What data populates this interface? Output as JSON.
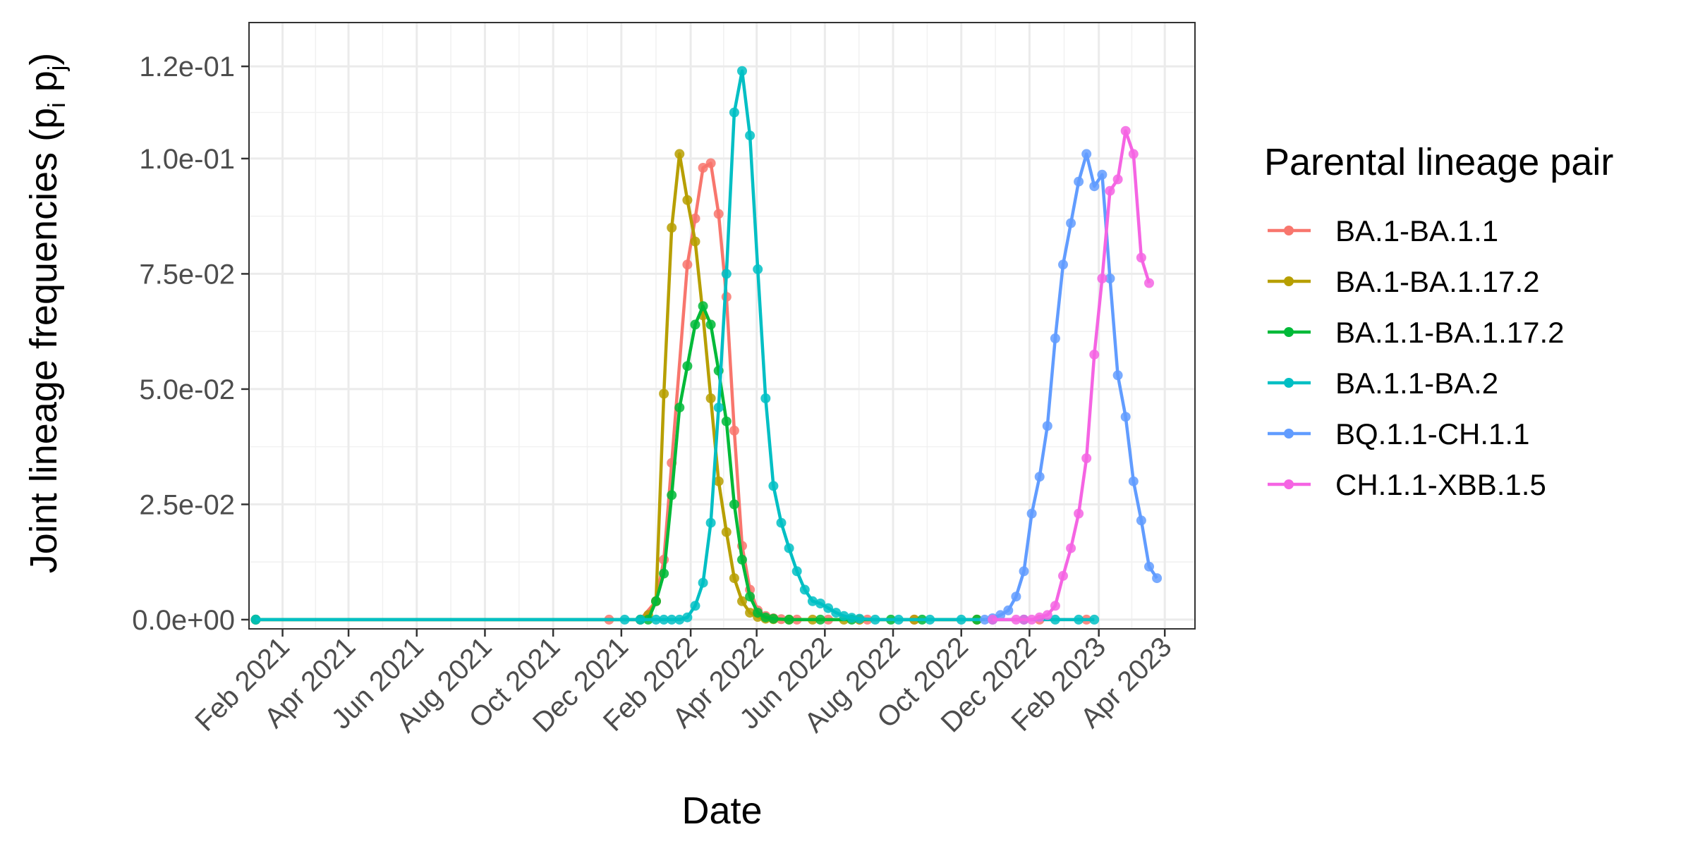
{
  "chart_data": {
    "type": "line",
    "xlabel": "Date",
    "ylabel_main": "Joint lineage frequencies (p",
    "ylabel_sub_i": "i",
    "ylabel_sep": " p",
    "ylabel_sub_j": "j",
    "ylabel_close": ")",
    "x_ticks": [
      "2021-02-01",
      "2021-04-01",
      "2021-06-01",
      "2021-08-01",
      "2021-10-01",
      "2021-12-01",
      "2022-02-01",
      "2022-04-01",
      "2022-06-01",
      "2022-08-01",
      "2022-10-01",
      "2022-12-01",
      "2023-02-01",
      "2023-04-01"
    ],
    "x_tick_labels": [
      "Feb 2021",
      "Apr 2021",
      "Jun 2021",
      "Aug 2021",
      "Oct 2021",
      "Dec 2021",
      "Feb 2022",
      "Apr 2022",
      "Jun 2022",
      "Aug 2022",
      "Oct 2022",
      "Dec 2022",
      "Feb 2023",
      "Apr 2023"
    ],
    "y_ticks": [
      0,
      0.025,
      0.05,
      0.075,
      0.1,
      0.12
    ],
    "y_tick_labels": [
      "0.0e+00",
      "2.5e-02",
      "5.0e-02",
      "7.5e-02",
      "1.0e-01",
      "1.2e-01"
    ],
    "xlim": [
      "2021-01-02",
      "2023-04-28"
    ],
    "ylim": [
      -0.002,
      0.1295
    ],
    "grid": true,
    "legend_position": "right",
    "legend_title": "Parental lineage pair",
    "series": [
      {
        "name": "BA.1-BA.1.1",
        "color": "#F8766D",
        "points": [
          [
            "2021-01-08",
            0
          ],
          [
            "2021-11-20",
            0
          ],
          [
            "2021-12-18",
            0
          ],
          [
            "2022-01-01",
            0.004
          ],
          [
            "2022-01-08",
            0.013
          ],
          [
            "2022-01-15",
            0.034
          ],
          [
            "2022-01-29",
            0.077
          ],
          [
            "2022-02-05",
            0.087
          ],
          [
            "2022-02-12",
            0.098
          ],
          [
            "2022-02-19",
            0.099
          ],
          [
            "2022-02-26",
            0.088
          ],
          [
            "2022-03-05",
            0.07
          ],
          [
            "2022-03-12",
            0.041
          ],
          [
            "2022-03-19",
            0.016
          ],
          [
            "2022-03-26",
            0.0065
          ],
          [
            "2022-04-02",
            0.002
          ],
          [
            "2022-04-09",
            0.0008
          ],
          [
            "2022-04-16",
            0.0003
          ],
          [
            "2022-04-23",
            0.0001
          ],
          [
            "2022-05-07",
            0
          ],
          [
            "2022-06-04",
            0
          ],
          [
            "2022-07-02",
            0
          ],
          [
            "2022-07-09",
            0
          ],
          [
            "2022-08-20",
            0
          ],
          [
            "2022-10-15",
            0
          ],
          [
            "2022-12-10",
            0
          ],
          [
            "2023-01-21",
            0
          ]
        ]
      },
      {
        "name": "BA.1-BA.1.17.2",
        "color": "#B79F00",
        "points": [
          [
            "2021-01-08",
            0
          ],
          [
            "2021-12-18",
            0
          ],
          [
            "2021-12-25",
            0.001
          ],
          [
            "2022-01-01",
            0.004
          ],
          [
            "2022-01-08",
            0.049
          ],
          [
            "2022-01-15",
            0.085
          ],
          [
            "2022-01-22",
            0.101
          ],
          [
            "2022-01-29",
            0.091
          ],
          [
            "2022-02-05",
            0.082
          ],
          [
            "2022-02-12",
            0.066
          ],
          [
            "2022-02-19",
            0.048
          ],
          [
            "2022-02-26",
            0.03
          ],
          [
            "2022-03-05",
            0.019
          ],
          [
            "2022-03-12",
            0.009
          ],
          [
            "2022-03-19",
            0.004
          ],
          [
            "2022-03-26",
            0.0015
          ],
          [
            "2022-04-02",
            0.0006
          ],
          [
            "2022-04-09",
            0.0002
          ],
          [
            "2022-04-16",
            0.0001
          ],
          [
            "2022-04-30",
            0
          ],
          [
            "2022-05-21",
            0
          ],
          [
            "2022-06-18",
            0
          ],
          [
            "2022-07-02",
            0
          ],
          [
            "2022-08-20",
            0
          ],
          [
            "2022-10-15",
            0
          ]
        ]
      },
      {
        "name": "BA.1.1-BA.1.17.2",
        "color": "#00BA38",
        "points": [
          [
            "2021-01-08",
            0
          ],
          [
            "2021-12-18",
            0
          ],
          [
            "2021-12-25",
            0
          ],
          [
            "2022-01-01",
            0.004
          ],
          [
            "2022-01-08",
            0.01
          ],
          [
            "2022-01-15",
            0.027
          ],
          [
            "2022-01-22",
            0.046
          ],
          [
            "2022-01-29",
            0.055
          ],
          [
            "2022-02-05",
            0.064
          ],
          [
            "2022-02-12",
            0.068
          ],
          [
            "2022-02-19",
            0.064
          ],
          [
            "2022-02-26",
            0.054
          ],
          [
            "2022-03-05",
            0.043
          ],
          [
            "2022-03-12",
            0.025
          ],
          [
            "2022-03-19",
            0.013
          ],
          [
            "2022-03-26",
            0.005
          ],
          [
            "2022-04-02",
            0.0015
          ],
          [
            "2022-04-09",
            0.0005
          ],
          [
            "2022-04-16",
            0.0002
          ],
          [
            "2022-04-30",
            0
          ],
          [
            "2022-05-28",
            0
          ],
          [
            "2022-06-25",
            0
          ],
          [
            "2022-07-30",
            0
          ],
          [
            "2022-08-27",
            0
          ],
          [
            "2022-10-15",
            0
          ]
        ]
      },
      {
        "name": "BA.1.1-BA.2",
        "color": "#00BFC4",
        "points": [
          [
            "2021-01-08",
            0
          ],
          [
            "2021-12-04",
            0
          ],
          [
            "2021-12-18",
            0
          ],
          [
            "2022-01-01",
            0
          ],
          [
            "2022-01-08",
            0
          ],
          [
            "2022-01-15",
            0
          ],
          [
            "2022-01-22",
            0
          ],
          [
            "2022-01-29",
            0.0005
          ],
          [
            "2022-02-05",
            0.003
          ],
          [
            "2022-02-12",
            0.008
          ],
          [
            "2022-02-19",
            0.021
          ],
          [
            "2022-02-26",
            0.046
          ],
          [
            "2022-03-05",
            0.075
          ],
          [
            "2022-03-12",
            0.11
          ],
          [
            "2022-03-19",
            0.119
          ],
          [
            "2022-03-26",
            0.105
          ],
          [
            "2022-04-02",
            0.076
          ],
          [
            "2022-04-09",
            0.048
          ],
          [
            "2022-04-16",
            0.029
          ],
          [
            "2022-04-23",
            0.021
          ],
          [
            "2022-04-30",
            0.0155
          ],
          [
            "2022-05-07",
            0.0105
          ],
          [
            "2022-05-14",
            0.0065
          ],
          [
            "2022-05-21",
            0.004
          ],
          [
            "2022-05-28",
            0.0035
          ],
          [
            "2022-06-04",
            0.0025
          ],
          [
            "2022-06-11",
            0.0015
          ],
          [
            "2022-06-18",
            0.0008
          ],
          [
            "2022-06-25",
            0.0004
          ],
          [
            "2022-07-02",
            0.0002
          ],
          [
            "2022-07-16",
            0
          ],
          [
            "2022-08-06",
            0
          ],
          [
            "2022-09-03",
            0
          ],
          [
            "2022-10-01",
            0
          ],
          [
            "2022-10-29",
            0
          ],
          [
            "2022-11-26",
            0
          ],
          [
            "2022-12-24",
            0
          ],
          [
            "2023-01-14",
            0
          ],
          [
            "2023-01-28",
            0
          ]
        ]
      },
      {
        "name": "BQ.1.1-CH.1.1",
        "color": "#619CFF",
        "points": [
          [
            "2022-10-22",
            0
          ],
          [
            "2022-10-29",
            0.0003
          ],
          [
            "2022-11-05",
            0.001
          ],
          [
            "2022-11-12",
            0.002
          ],
          [
            "2022-11-19",
            0.005
          ],
          [
            "2022-11-26",
            0.0105
          ],
          [
            "2022-12-03",
            0.023
          ],
          [
            "2022-12-10",
            0.031
          ],
          [
            "2022-12-17",
            0.042
          ],
          [
            "2022-12-24",
            0.061
          ],
          [
            "2022-12-31",
            0.077
          ],
          [
            "2023-01-07",
            0.086
          ],
          [
            "2023-01-14",
            0.095
          ],
          [
            "2023-01-21",
            0.101
          ],
          [
            "2023-01-28",
            0.094
          ],
          [
            "2023-02-04",
            0.0965
          ],
          [
            "2023-02-11",
            0.074
          ],
          [
            "2023-02-18",
            0.053
          ],
          [
            "2023-02-25",
            0.044
          ],
          [
            "2023-03-04",
            0.03
          ],
          [
            "2023-03-11",
            0.0215
          ],
          [
            "2023-03-18",
            0.0115
          ],
          [
            "2023-03-25",
            0.009
          ]
        ]
      },
      {
        "name": "CH.1.1-XBB.1.5",
        "color": "#F564E3",
        "points": [
          [
            "2022-10-29",
            0
          ],
          [
            "2022-11-19",
            0
          ],
          [
            "2022-11-26",
            0
          ],
          [
            "2022-12-03",
            0
          ],
          [
            "2022-12-10",
            0.0005
          ],
          [
            "2022-12-17",
            0.001
          ],
          [
            "2022-12-24",
            0.003
          ],
          [
            "2022-12-31",
            0.0095
          ],
          [
            "2023-01-07",
            0.0155
          ],
          [
            "2023-01-14",
            0.023
          ],
          [
            "2023-01-21",
            0.035
          ],
          [
            "2023-01-28",
            0.0575
          ],
          [
            "2023-02-04",
            0.074
          ],
          [
            "2023-02-11",
            0.093
          ],
          [
            "2023-02-18",
            0.0955
          ],
          [
            "2023-02-25",
            0.106
          ],
          [
            "2023-03-04",
            0.101
          ],
          [
            "2023-03-11",
            0.0785
          ],
          [
            "2023-03-18",
            0.073
          ]
        ]
      }
    ]
  }
}
